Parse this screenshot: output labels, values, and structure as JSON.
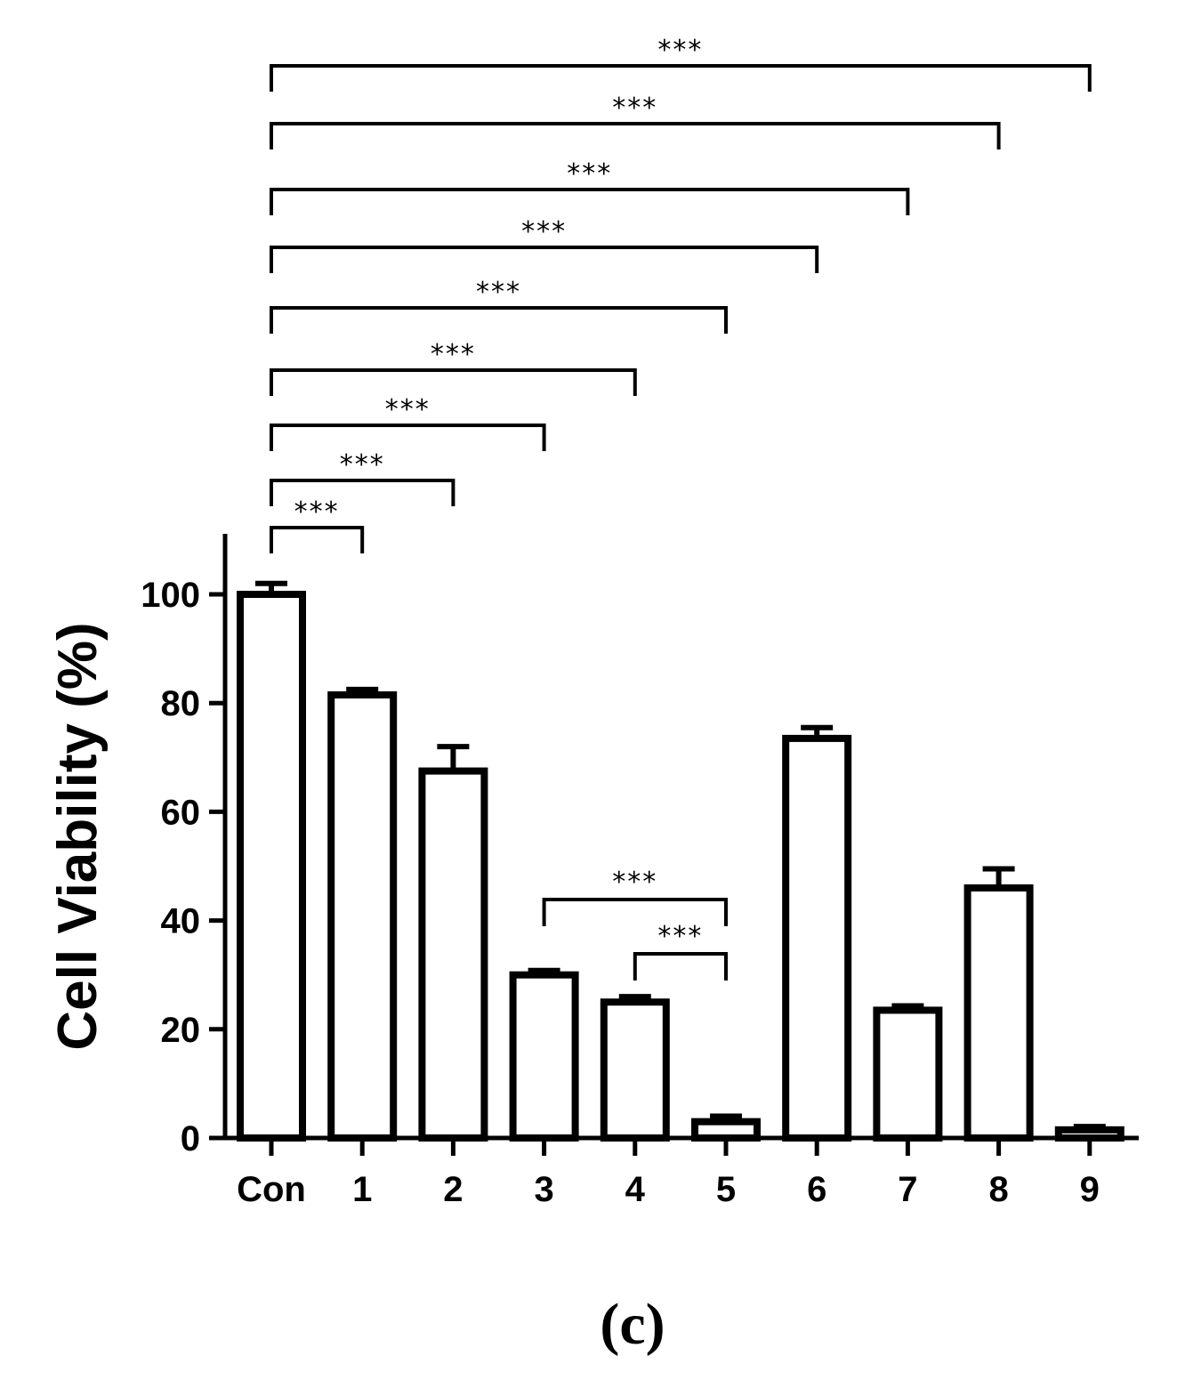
{
  "chart_data": {
    "type": "bar",
    "title": "",
    "xlabel": "",
    "ylabel": "Cell Viability (%)",
    "ylim": [
      0,
      110
    ],
    "yticks": [
      "0",
      "20",
      "40",
      "60",
      "80",
      "100"
    ],
    "categories": [
      "Con",
      "1",
      "2",
      "3",
      "4",
      "5",
      "6",
      "7",
      "8",
      "9"
    ],
    "values": [
      100,
      81.5,
      67.5,
      30,
      25,
      3,
      73.5,
      23.5,
      46,
      1.5
    ],
    "errors": [
      2,
      1,
      4.5,
      0.8,
      1,
      1,
      2,
      0.8,
      3.5,
      0.6
    ],
    "significance": [
      {
        "from": "Con",
        "to": "1",
        "label": "***"
      },
      {
        "from": "Con",
        "to": "2",
        "label": "***"
      },
      {
        "from": "Con",
        "to": "3",
        "label": "***"
      },
      {
        "from": "Con",
        "to": "4",
        "label": "***"
      },
      {
        "from": "Con",
        "to": "5",
        "label": "***"
      },
      {
        "from": "Con",
        "to": "6",
        "label": "***"
      },
      {
        "from": "Con",
        "to": "7",
        "label": "***"
      },
      {
        "from": "Con",
        "to": "8",
        "label": "***"
      },
      {
        "from": "Con",
        "to": "9",
        "label": "***"
      },
      {
        "from": "3",
        "to": "5",
        "label": "***"
      },
      {
        "from": "4",
        "to": "5",
        "label": "***"
      }
    ],
    "grid": false,
    "legend": "none"
  },
  "panel_label": "(c)"
}
